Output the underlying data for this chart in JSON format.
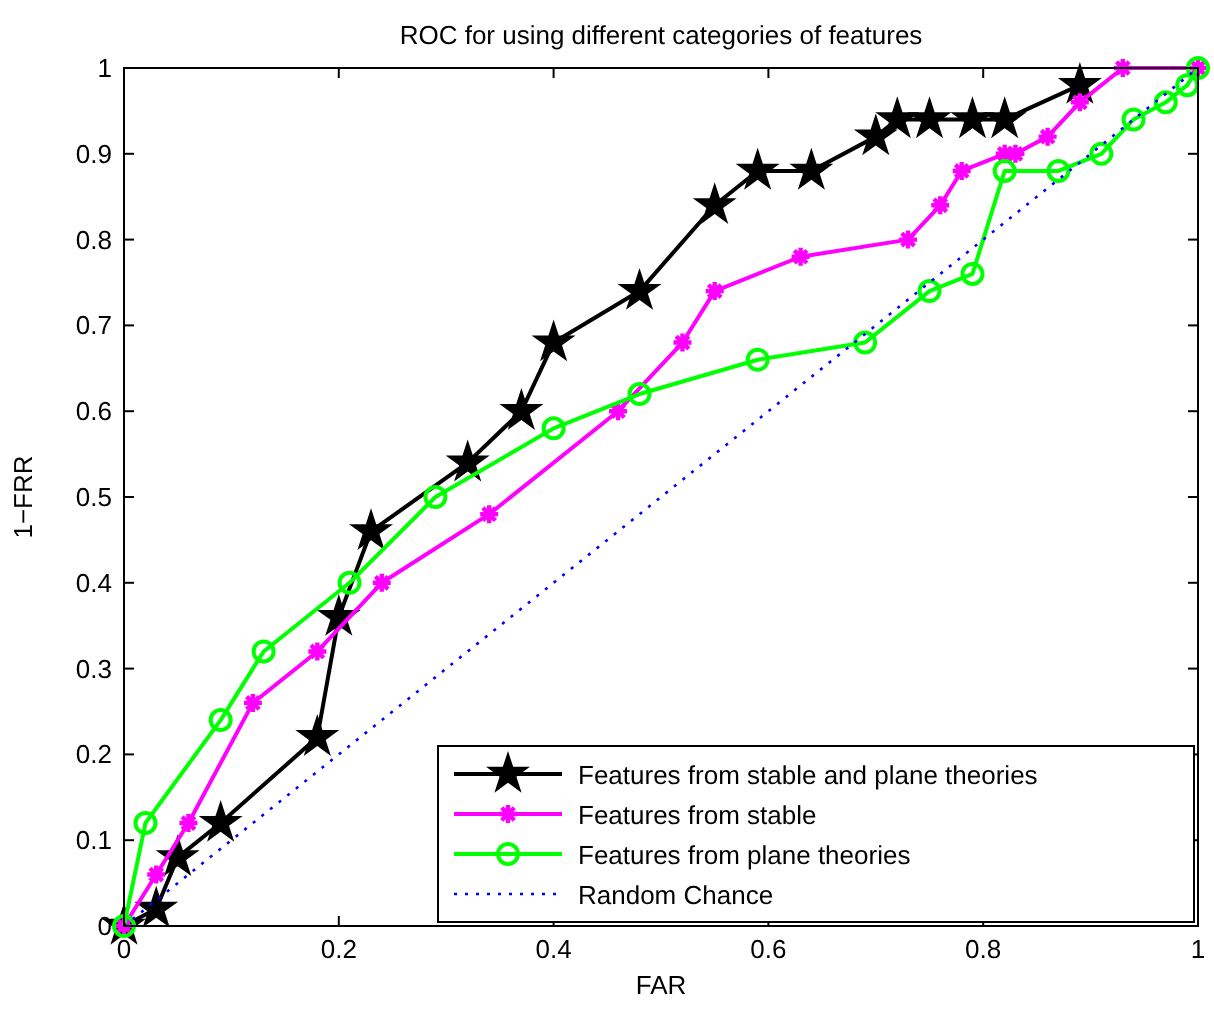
{
  "chart_data": {
    "type": "line",
    "title": "ROC for using different categories of features",
    "xlabel": "FAR",
    "ylabel": "1−FRR",
    "xlim": [
      0,
      1
    ],
    "ylim": [
      0,
      1
    ],
    "xticks": [
      0,
      0.2,
      0.4,
      0.6,
      0.8,
      1
    ],
    "yticks": [
      0,
      0.1,
      0.2,
      0.3,
      0.4,
      0.5,
      0.6,
      0.7,
      0.8,
      0.9,
      1
    ],
    "grid": false,
    "legend": "bottom right",
    "series": [
      {
        "name": "Features from stable and plane theories",
        "color": "#000000",
        "marker": "star",
        "line_style": "solid",
        "x": [
          0,
          0.03,
          0.05,
          0.09,
          0.18,
          0.2,
          0.23,
          0.32,
          0.37,
          0.4,
          0.48,
          0.55,
          0.59,
          0.64,
          0.7,
          0.72,
          0.75,
          0.79,
          0.82,
          0.89
        ],
        "values": [
          0,
          0.02,
          0.08,
          0.12,
          0.22,
          0.36,
          0.46,
          0.54,
          0.6,
          0.68,
          0.74,
          0.84,
          0.88,
          0.88,
          0.92,
          0.94,
          0.94,
          0.94,
          0.94,
          0.98
        ]
      },
      {
        "name": "Features from stable",
        "color": "#ff00ff",
        "marker": "cross",
        "line_style": "solid",
        "x": [
          0,
          0.03,
          0.06,
          0.12,
          0.18,
          0.24,
          0.34,
          0.46,
          0.52,
          0.55,
          0.63,
          0.73,
          0.76,
          0.78,
          0.82,
          0.83,
          0.86,
          0.89,
          0.93,
          1
        ],
        "values": [
          0,
          0.06,
          0.12,
          0.26,
          0.32,
          0.4,
          0.48,
          0.6,
          0.68,
          0.74,
          0.78,
          0.8,
          0.84,
          0.88,
          0.9,
          0.9,
          0.92,
          0.96,
          1,
          1
        ]
      },
      {
        "name": "Features from plane theories",
        "color": "#00ff00",
        "marker": "circle",
        "line_style": "solid",
        "x": [
          0,
          0.02,
          0.09,
          0.13,
          0.21,
          0.29,
          0.4,
          0.48,
          0.59,
          0.69,
          0.75,
          0.79,
          0.82,
          0.87,
          0.91,
          0.94,
          0.97,
          0.99,
          1
        ],
        "values": [
          0,
          0.12,
          0.24,
          0.32,
          0.4,
          0.5,
          0.58,
          0.62,
          0.66,
          0.68,
          0.74,
          0.76,
          0.88,
          0.88,
          0.9,
          0.94,
          0.96,
          0.98,
          1
        ]
      },
      {
        "name": "Random Chance",
        "color": "#0000ff",
        "marker": "none",
        "line_style": "dotted",
        "x": [
          0,
          1
        ],
        "values": [
          0,
          1
        ]
      }
    ]
  }
}
